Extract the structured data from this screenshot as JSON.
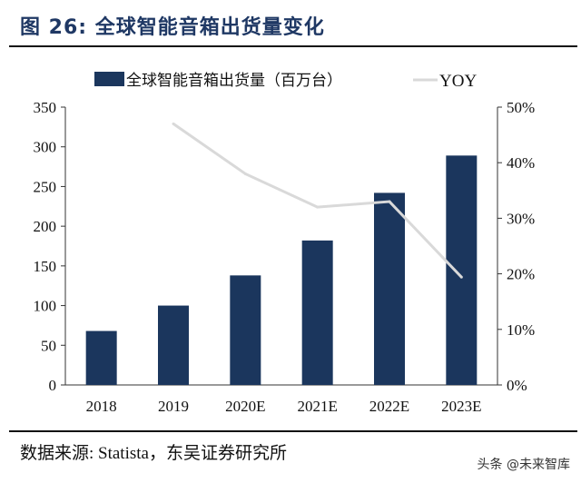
{
  "title": "图 26:  全球智能音箱出货量变化",
  "source": "数据来源:  Statista，东吴证券研究所",
  "watermark": "头条 @未来智库",
  "chart_data": {
    "type": "bar+line",
    "categories": [
      "2018",
      "2019",
      "2020E",
      "2021E",
      "2022E",
      "2023E"
    ],
    "series": [
      {
        "name": "全球智能音箱出货量（百万台）",
        "type": "bar",
        "axis": "left",
        "color": "#1b365d",
        "values": [
          68,
          100,
          138,
          182,
          242,
          289
        ]
      },
      {
        "name": "YOY",
        "type": "line",
        "axis": "right",
        "color": "#d9d9d9",
        "values": [
          null,
          47,
          38,
          32,
          33,
          19.4
        ]
      }
    ],
    "left_axis": {
      "ylim": [
        0,
        350
      ],
      "ticks": [
        "0",
        "50",
        "100",
        "150",
        "200",
        "250",
        "300",
        "350"
      ]
    },
    "right_axis": {
      "ylim": [
        0,
        50
      ],
      "ticks": [
        "0%",
        "10%",
        "20%",
        "30%",
        "40%",
        "50%"
      ]
    },
    "legend_position": "top",
    "grid": false
  }
}
